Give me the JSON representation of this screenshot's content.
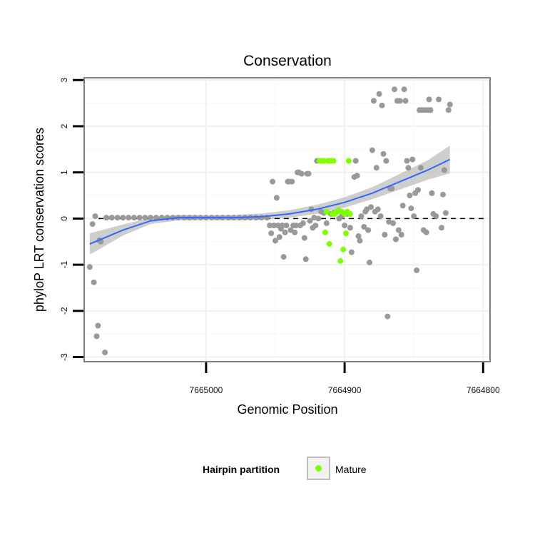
{
  "chart_data": {
    "type": "scatter",
    "title": "Conservation",
    "xlabel": "Genomic Position",
    "ylabel": "phyloP LRT conservation scores",
    "x_reversed": true,
    "xlim": [
      7665088,
      7664795
    ],
    "ylim": [
      -3.1,
      3.05
    ],
    "x_ticks": [
      7665000,
      7664900,
      7664800
    ],
    "x_tick_labels": [
      "7665000",
      "7664900",
      "7664800"
    ],
    "y_ticks": [
      -3,
      -2,
      -1,
      0,
      1,
      2,
      3
    ],
    "y_tick_labels": [
      "-3",
      "-2",
      "-1",
      "0",
      "1",
      "2",
      "3"
    ],
    "grid": true,
    "reference_line": {
      "y": 0,
      "style": "dashed"
    },
    "legend": {
      "title": "Hairpin partition",
      "placement": "bottom",
      "entries": [
        {
          "label": "Mature",
          "color": "#7fff00"
        }
      ]
    },
    "colors": {
      "other": "#999999",
      "mature": "#7fff00",
      "smooth": "#3366ff",
      "band": "#bdbdbd"
    },
    "series": [
      {
        "group": "other",
        "points": [
          [
            7665084,
            -1.05
          ],
          [
            7665082,
            -0.12
          ],
          [
            7665081,
            -1.38
          ],
          [
            7665080,
            0.05
          ],
          [
            7665079,
            -2.55
          ],
          [
            7665078,
            -2.32
          ],
          [
            7665077,
            -0.47
          ],
          [
            7665076,
            -0.5
          ],
          [
            7665073,
            -2.9
          ],
          [
            7665072,
            0.02
          ],
          [
            7665068,
            0.02
          ],
          [
            7665064,
            0.02
          ],
          [
            7665060,
            0.02
          ],
          [
            7665056,
            0.02
          ],
          [
            7665052,
            0.02
          ],
          [
            7665048,
            0.02
          ],
          [
            7665044,
            0.02
          ],
          [
            7665040,
            0.02
          ],
          [
            7665036,
            0.02
          ],
          [
            7665032,
            0.02
          ],
          [
            7665028,
            0.02
          ],
          [
            7665024,
            0.02
          ],
          [
            7665020,
            0.02
          ],
          [
            7665016,
            0.02
          ],
          [
            7665012,
            0.02
          ],
          [
            7665008,
            0.02
          ],
          [
            7665004,
            0.02
          ],
          [
            7665000,
            0.02
          ],
          [
            7664996,
            0.02
          ],
          [
            7664992,
            0.02
          ],
          [
            7664988,
            0.02
          ],
          [
            7664984,
            0.02
          ],
          [
            7664980,
            0.02
          ],
          [
            7664976,
            0.02
          ],
          [
            7664972,
            0.02
          ],
          [
            7664968,
            0.02
          ],
          [
            7664964,
            0.02
          ],
          [
            7664960,
            0.02
          ],
          [
            7664956,
            0.02
          ],
          [
            7664954,
            -0.15
          ],
          [
            7664953,
            -0.32
          ],
          [
            7664952,
            0.8
          ],
          [
            7664951,
            -0.15
          ],
          [
            7664950,
            -0.48
          ],
          [
            7664949,
            0.45
          ],
          [
            7664948,
            -0.15
          ],
          [
            7664947,
            -0.4
          ],
          [
            7664946,
            -0.22
          ],
          [
            7664945,
            -0.15
          ],
          [
            7664944,
            -0.83
          ],
          [
            7664943,
            -0.3
          ],
          [
            7664942,
            -0.15
          ],
          [
            7664941,
            0.8
          ],
          [
            7664940,
            0.8
          ],
          [
            7664939,
            -0.25
          ],
          [
            7664938,
            0.8
          ],
          [
            7664937,
            -0.15
          ],
          [
            7664936,
            -0.3
          ],
          [
            7664935,
            -0.15
          ],
          [
            7664934,
            1.0
          ],
          [
            7664933,
            1.0
          ],
          [
            7664932,
            -0.15
          ],
          [
            7664931,
            0.97
          ],
          [
            7664930,
            -0.1
          ],
          [
            7664929,
            -0.42
          ],
          [
            7664928,
            -0.88
          ],
          [
            7664927,
            0.97
          ],
          [
            7664926,
            0.97
          ],
          [
            7664925,
            -0.05
          ],
          [
            7664924,
            0.2
          ],
          [
            7664923,
            -0.2
          ],
          [
            7664922,
            0.02
          ],
          [
            7664921,
            -0.15
          ],
          [
            7664920,
            1.25
          ],
          [
            7664919,
            0.0
          ],
          [
            7664917,
            0.15
          ],
          [
            7664915,
            0.12
          ],
          [
            7664913,
            -0.1
          ],
          [
            7664910,
            0.1
          ],
          [
            7664908,
            0.12
          ],
          [
            7664906,
            0.15
          ],
          [
            7664904,
            0.0
          ],
          [
            7664902,
            0.05
          ],
          [
            7664900,
            -0.15
          ],
          [
            7664898,
            0.1
          ],
          [
            7664896,
            -0.2
          ],
          [
            7664895,
            -0.73
          ],
          [
            7664893,
            0.9
          ],
          [
            7664892,
            1.25
          ],
          [
            7664891,
            0.93
          ],
          [
            7664890,
            -0.38
          ],
          [
            7664889,
            -0.48
          ],
          [
            7664888,
            0.05
          ],
          [
            7664886,
            -0.18
          ],
          [
            7664885,
            0.15
          ],
          [
            7664884,
            0.2
          ],
          [
            7664883,
            -0.25
          ],
          [
            7664882,
            -0.95
          ],
          [
            7664881,
            0.25
          ],
          [
            7664880,
            1.48
          ],
          [
            7664879,
            2.55
          ],
          [
            7664878,
            0.15
          ],
          [
            7664877,
            1.1
          ],
          [
            7664876,
            0.2
          ],
          [
            7664875,
            2.7
          ],
          [
            7664874,
            0.05
          ],
          [
            7664873,
            2.45
          ],
          [
            7664872,
            1.4
          ],
          [
            7664871,
            -0.35
          ],
          [
            7664870,
            1.25
          ],
          [
            7664869,
            -2.12
          ],
          [
            7664868,
            -0.07
          ],
          [
            7664867,
            0.65
          ],
          [
            7664866,
            0.65
          ],
          [
            7664865,
            -0.1
          ],
          [
            7664864,
            2.8
          ],
          [
            7664863,
            -0.45
          ],
          [
            7664862,
            2.55
          ],
          [
            7664861,
            -0.25
          ],
          [
            7664860,
            2.55
          ],
          [
            7664859,
            -0.35
          ],
          [
            7664858,
            0.28
          ],
          [
            7664857,
            2.8
          ],
          [
            7664856,
            2.55
          ],
          [
            7664855,
            1.25
          ],
          [
            7664854,
            1.1
          ],
          [
            7664853,
            0.5
          ],
          [
            7664852,
            0.22
          ],
          [
            7664851,
            1.28
          ],
          [
            7664850,
            0.05
          ],
          [
            7664849,
            0.55
          ],
          [
            7664848,
            -1.12
          ],
          [
            7664847,
            0.62
          ],
          [
            7664846,
            2.35
          ],
          [
            7664845,
            1.1
          ],
          [
            7664844,
            2.35
          ],
          [
            7664843,
            -0.25
          ],
          [
            7664842,
            2.35
          ],
          [
            7664841,
            -0.3
          ],
          [
            7664840,
            2.35
          ],
          [
            7664839,
            2.58
          ],
          [
            7664838,
            2.35
          ],
          [
            7664837,
            0.55
          ],
          [
            7664836,
            0.1
          ],
          [
            7664834,
            0.05
          ],
          [
            7664832,
            2.58
          ],
          [
            7664830,
            -0.2
          ],
          [
            7664829,
            0.52
          ],
          [
            7664828,
            1.05
          ],
          [
            7664827,
            0.12
          ],
          [
            7664825,
            2.35
          ],
          [
            7664824,
            2.47
          ]
        ]
      },
      {
        "group": "mature",
        "name": "Mature",
        "points": [
          [
            7664918,
            1.25
          ],
          [
            7664917,
            1.25
          ],
          [
            7664916,
            1.25
          ],
          [
            7664915,
            1.25
          ],
          [
            7664914,
            -0.3
          ],
          [
            7664913,
            0.15
          ],
          [
            7664912,
            1.25
          ],
          [
            7664911,
            -0.55
          ],
          [
            7664910,
            1.25
          ],
          [
            7664909,
            0.1
          ],
          [
            7664908,
            1.25
          ],
          [
            7664907,
            0.1
          ],
          [
            7664906,
            0.15
          ],
          [
            7664905,
            0.15
          ],
          [
            7664904,
            0.18
          ],
          [
            7664903,
            -0.92
          ],
          [
            7664902,
            0.15
          ],
          [
            7664901,
            -0.67
          ],
          [
            7664900,
            0.1
          ],
          [
            7664899,
            -0.32
          ],
          [
            7664898,
            0.15
          ],
          [
            7664897,
            1.25
          ],
          [
            7664896,
            0.1
          ]
        ]
      }
    ],
    "smooth": {
      "method": "loess",
      "x": [
        7665084,
        7665060,
        7665040,
        7665020,
        7665000,
        7664980,
        7664960,
        7664940,
        7664920,
        7664900,
        7664880,
        7664860,
        7664840,
        7664824
      ],
      "y": [
        -0.55,
        -0.25,
        -0.05,
        0.02,
        0.02,
        0.02,
        0.04,
        0.1,
        0.2,
        0.35,
        0.55,
        0.8,
        1.05,
        1.28
      ],
      "lower": [
        -0.78,
        -0.37,
        -0.12,
        -0.04,
        -0.03,
        -0.04,
        -0.03,
        0.02,
        0.1,
        0.24,
        0.42,
        0.63,
        0.84,
        0.98
      ],
      "upper": [
        -0.32,
        -0.13,
        0.02,
        0.08,
        0.07,
        0.08,
        0.11,
        0.18,
        0.3,
        0.46,
        0.68,
        0.97,
        1.26,
        1.58
      ]
    }
  }
}
